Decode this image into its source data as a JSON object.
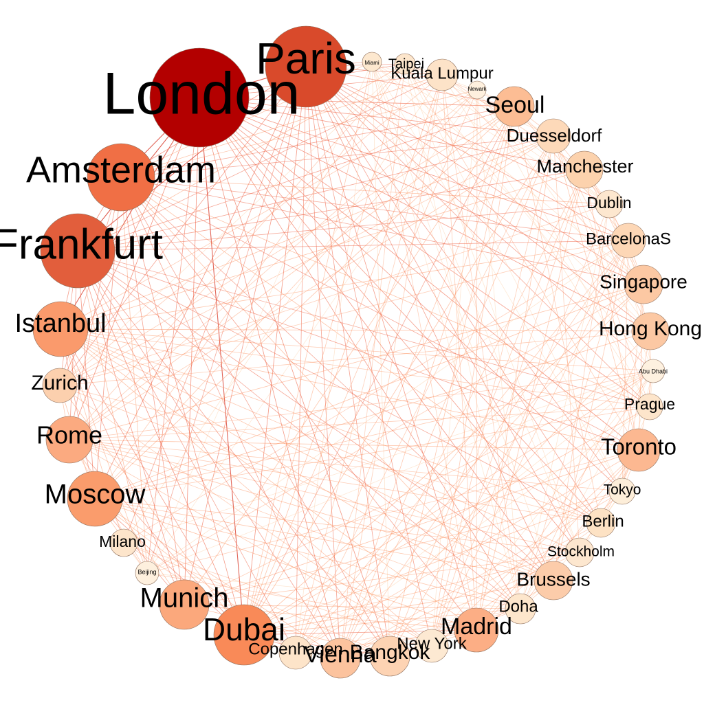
{
  "nodes": [
    {
      "id": "london",
      "label": "London",
      "color": "#b30000"
    },
    {
      "id": "paris",
      "label": "Paris",
      "color": "#d94a2b"
    },
    {
      "id": "miami",
      "label": "Miami",
      "color": "#fde8cf"
    },
    {
      "id": "taipei",
      "label": "Taipei",
      "color": "#fde6cc"
    },
    {
      "id": "kuala-lumpur",
      "label": "Kuala Lumpur",
      "color": "#fde3c8"
    },
    {
      "id": "newark",
      "label": "Newark",
      "color": "#fef0de"
    },
    {
      "id": "seoul",
      "label": "Seoul",
      "color": "#fcbd94"
    },
    {
      "id": "duesseldorf",
      "label": "Duesseldorf",
      "color": "#fdd9b9"
    },
    {
      "id": "manchester",
      "label": "Manchester",
      "color": "#fcd2ad"
    },
    {
      "id": "dublin",
      "label": "Dublin",
      "color": "#fde7cf"
    },
    {
      "id": "barcelonas",
      "label": "BarcelonaS",
      "color": "#fdd7b6"
    },
    {
      "id": "singapore",
      "label": "Singapore",
      "color": "#fcc8a3"
    },
    {
      "id": "hong-kong",
      "label": "Hong Kong",
      "color": "#fcc8a3"
    },
    {
      "id": "abu-dhabi",
      "label": "Abu Dhabi",
      "color": "#fef1e0"
    },
    {
      "id": "prague",
      "label": "Prague",
      "color": "#fde5cb"
    },
    {
      "id": "toronto",
      "label": "Toronto",
      "color": "#fcb891"
    },
    {
      "id": "tokyo",
      "label": "Tokyo",
      "color": "#fdeed9"
    },
    {
      "id": "berlin",
      "label": "Berlin",
      "color": "#fde2c4"
    },
    {
      "id": "stockholm",
      "label": "Stockholm",
      "color": "#fde7cf"
    },
    {
      "id": "brussels",
      "label": "Brussels",
      "color": "#fcccaa"
    },
    {
      "id": "doha",
      "label": "Doha",
      "color": "#fde6cc"
    },
    {
      "id": "madrid",
      "label": "Madrid",
      "color": "#fcae85"
    },
    {
      "id": "new-york",
      "label": "New York",
      "color": "#fde9d2"
    },
    {
      "id": "bangkok",
      "label": "Bangkok",
      "color": "#fdd3b3"
    },
    {
      "id": "vienna",
      "label": "Vienna",
      "color": "#fcc39e"
    },
    {
      "id": "copenhagen",
      "label": "Copenhagen",
      "color": "#fde4c9"
    },
    {
      "id": "dubai",
      "label": "Dubai",
      "color": "#f98a58"
    },
    {
      "id": "munich",
      "label": "Munich",
      "color": "#fba87c"
    },
    {
      "id": "beijing",
      "label": "Beijing",
      "color": "#fef0de"
    },
    {
      "id": "milano",
      "label": "Milano",
      "color": "#fde5cb"
    },
    {
      "id": "moscow",
      "label": "Moscow",
      "color": "#fa9c6c"
    },
    {
      "id": "rome",
      "label": "Rome",
      "color": "#fbaa80"
    },
    {
      "id": "zurich",
      "label": "Zurich",
      "color": "#fcd0ae"
    },
    {
      "id": "istanbul",
      "label": "Istanbul",
      "color": "#fa9a6c"
    },
    {
      "id": "frankfurt",
      "label": "Frankfurt",
      "color": "#e25e3c"
    },
    {
      "id": "amsterdam",
      "label": "Amsterdam",
      "color": "#f06f45"
    }
  ]
}
